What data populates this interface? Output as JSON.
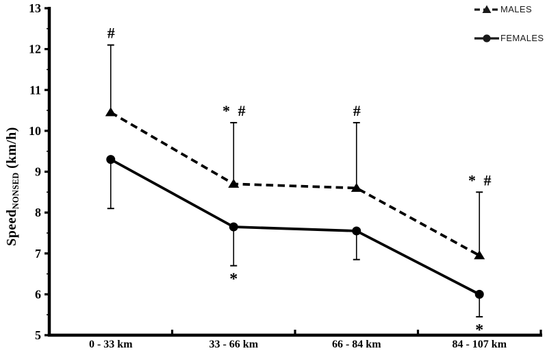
{
  "chart_data": {
    "type": "line",
    "categories": [
      "0 - 33 km",
      "33 - 66 km",
      "66 - 84 km",
      "84 - 107 km"
    ],
    "series": [
      {
        "name": "MALES",
        "values": [
          10.45,
          8.7,
          8.6,
          6.95
        ],
        "error_upper": [
          12.1,
          10.2,
          10.2,
          8.5
        ],
        "line": "dashed",
        "marker": "triangle",
        "annotations_above": [
          "#",
          "* #",
          "#",
          "* #"
        ]
      },
      {
        "name": "FEMALES",
        "values": [
          9.3,
          7.65,
          7.55,
          6.0
        ],
        "error_lower": [
          8.1,
          6.7,
          6.85,
          5.45
        ],
        "line": "solid",
        "marker": "circle",
        "annotations_below": [
          "",
          "*",
          "",
          "*"
        ]
      }
    ],
    "ylabel": {
      "base": "Speed",
      "subscript": "NONSED",
      "unit": " (km/h)"
    },
    "ylim": [
      5,
      13
    ],
    "yticks": [
      5,
      6,
      7,
      8,
      9,
      10,
      11,
      12,
      13
    ],
    "y_minor_ticks": [
      5.5,
      6.5,
      7.5,
      8.5,
      9.5,
      10.5,
      11.5,
      12.5
    ],
    "grid": false,
    "legend_position": "top-right",
    "color": "#000000"
  }
}
